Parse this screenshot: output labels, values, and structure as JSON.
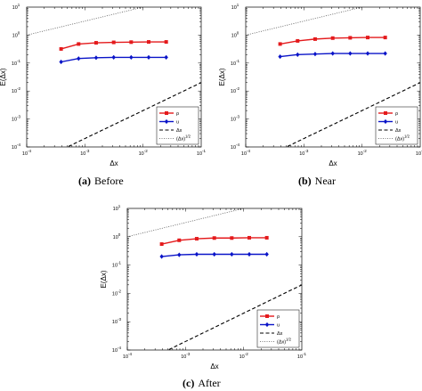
{
  "colors": {
    "rho": "#e41a1c",
    "u": "#0a14c8",
    "ref": "#000000"
  },
  "legend": {
    "rho": "ρ",
    "u": "u",
    "dx": "Δx",
    "sqrt_dx": "(Δx)",
    "sqrt_exp": "1/2"
  },
  "subplots": [
    {
      "id": "a",
      "caption_letter": "(a)",
      "caption_text": "Before"
    },
    {
      "id": "b",
      "caption_letter": "(b)",
      "caption_text": "Near"
    },
    {
      "id": "c",
      "caption_letter": "(c)",
      "caption_text": "After"
    }
  ],
  "chart_data": [
    {
      "type": "line",
      "xscale": "log",
      "yscale": "log",
      "xlim": [
        0.0001,
        0.1
      ],
      "ylim": [
        0.0001,
        10
      ],
      "xlabel": "Δx",
      "ylabel": "E(Δx)",
      "xticks": [
        {
          "e": "-4"
        },
        {
          "e": "-3"
        },
        {
          "e": "-2"
        },
        {
          "e": "-1"
        }
      ],
      "yticks": [
        {
          "e": "-4"
        },
        {
          "e": "-3"
        },
        {
          "e": "-2"
        },
        {
          "e": "-1"
        },
        {
          "e": "0"
        },
        {
          "e": "1"
        }
      ],
      "x": [
        0.00039,
        0.00078,
        0.00156,
        0.00313,
        0.00625,
        0.0125,
        0.025
      ],
      "series": [
        {
          "name": "ρ",
          "values": [
            0.32,
            0.48,
            0.53,
            0.55,
            0.56,
            0.57,
            0.57
          ]
        },
        {
          "name": "u",
          "values": [
            0.11,
            0.145,
            0.155,
            0.16,
            0.16,
            0.16,
            0.16
          ]
        },
        {
          "name": "Δx",
          "reference": "dx",
          "coef": 0.2,
          "power": 1
        },
        {
          "name": "(Δx)^1/2",
          "reference": "sqrt",
          "coef": 100,
          "power": 0.5
        }
      ],
      "legend_position": "bottom-right"
    },
    {
      "type": "line",
      "xscale": "log",
      "yscale": "log",
      "xlim": [
        0.0001,
        0.1
      ],
      "ylim": [
        0.0001,
        10
      ],
      "xlabel": "Δx",
      "ylabel": "E(Δx)",
      "xticks": [
        {
          "e": "-4"
        },
        {
          "e": "-3"
        },
        {
          "e": "-2"
        },
        {
          "e": "-1"
        }
      ],
      "yticks": [
        {
          "e": "-4"
        },
        {
          "e": "-3"
        },
        {
          "e": "-2"
        },
        {
          "e": "-1"
        },
        {
          "e": "0"
        },
        {
          "e": "1"
        }
      ],
      "x": [
        0.00039,
        0.00078,
        0.00156,
        0.00313,
        0.00625,
        0.0125,
        0.025
      ],
      "series": [
        {
          "name": "ρ",
          "values": [
            0.48,
            0.62,
            0.72,
            0.78,
            0.8,
            0.82,
            0.82
          ]
        },
        {
          "name": "u",
          "values": [
            0.17,
            0.2,
            0.21,
            0.22,
            0.22,
            0.22,
            0.22
          ]
        },
        {
          "name": "Δx",
          "reference": "dx",
          "coef": 0.2,
          "power": 1
        },
        {
          "name": "(Δx)^1/2",
          "reference": "sqrt",
          "coef": 100,
          "power": 0.5
        }
      ],
      "legend_position": "bottom-right"
    },
    {
      "type": "line",
      "xscale": "log",
      "yscale": "log",
      "xlim": [
        0.0001,
        0.1
      ],
      "ylim": [
        0.0001,
        10
      ],
      "xlabel": "Δx",
      "ylabel": "E(Δx)",
      "xticks": [
        {
          "e": "-4"
        },
        {
          "e": "-3"
        },
        {
          "e": "-2"
        },
        {
          "e": "-1"
        }
      ],
      "yticks": [
        {
          "e": "-4"
        },
        {
          "e": "-3"
        },
        {
          "e": "-2"
        },
        {
          "e": "-1"
        },
        {
          "e": "0"
        },
        {
          "e": "1"
        }
      ],
      "x": [
        0.00039,
        0.00078,
        0.00156,
        0.00313,
        0.00625,
        0.0125,
        0.025
      ],
      "series": [
        {
          "name": "ρ",
          "values": [
            0.55,
            0.75,
            0.85,
            0.9,
            0.9,
            0.92,
            0.92
          ]
        },
        {
          "name": "u",
          "values": [
            0.2,
            0.23,
            0.24,
            0.24,
            0.24,
            0.24,
            0.24
          ]
        },
        {
          "name": "Δx",
          "reference": "dx",
          "coef": 0.2,
          "power": 1
        },
        {
          "name": "(Δx)^1/2",
          "reference": "sqrt",
          "coef": 100,
          "power": 0.5
        }
      ],
      "legend_position": "bottom-right"
    }
  ]
}
